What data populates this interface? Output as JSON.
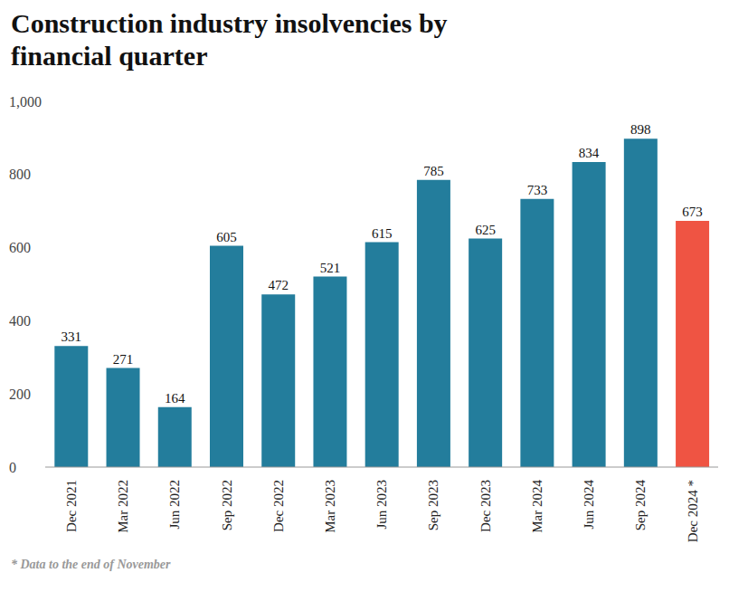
{
  "chart_data": {
    "type": "bar",
    "title": "Construction industry insolvencies by financial quarter",
    "footnote": "* Data to the end of November",
    "categories": [
      "Dec 2021",
      "Mar 2022",
      "Jun 2022",
      "Sep 2022",
      "Dec 2022",
      "Mar 2023",
      "Jun 2023",
      "Sep 2023",
      "Dec 2023",
      "Mar 2024",
      "Jun 2024",
      "Sep 2024",
      "Dec 2024 *"
    ],
    "values": [
      331,
      271,
      164,
      605,
      472,
      521,
      615,
      785,
      625,
      733,
      834,
      898,
      673
    ],
    "colors": [
      "#237d9c",
      "#237d9c",
      "#237d9c",
      "#237d9c",
      "#237d9c",
      "#237d9c",
      "#237d9c",
      "#237d9c",
      "#237d9c",
      "#237d9c",
      "#237d9c",
      "#237d9c",
      "#ef5443"
    ],
    "ylim": [
      0,
      1000
    ],
    "yticks": [
      0,
      200,
      400,
      600,
      800,
      {
        "value": 1000,
        "label": "1,000"
      }
    ],
    "grid": false,
    "data_labels": true
  }
}
